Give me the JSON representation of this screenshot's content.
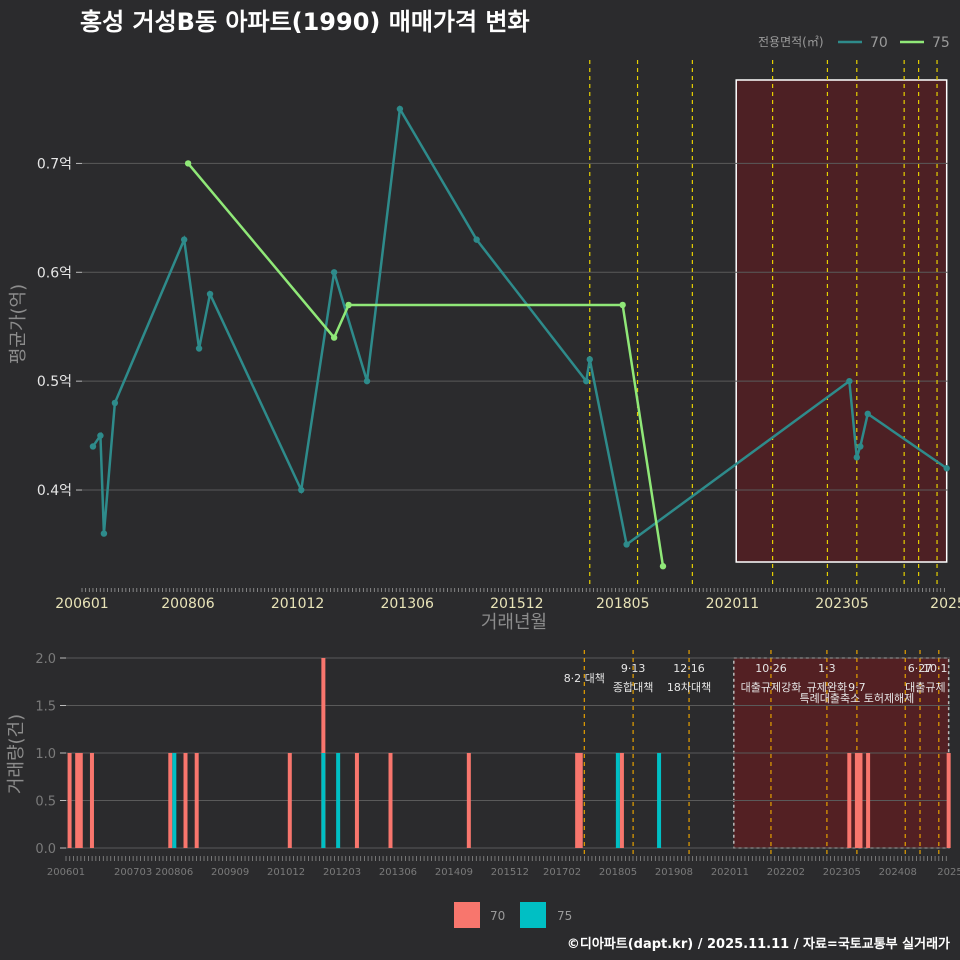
{
  "title": "홍성 거성B동 아파트(1990) 매매가격 변화",
  "footer": "©디아파트(dapt.kr) / 2025.11.11 / 자료=국토교통부 실거래가",
  "legend_top": {
    "title": "전용면적(㎡)",
    "items": [
      "70",
      "75"
    ]
  },
  "legend_bottom": {
    "items": [
      "70",
      "75"
    ]
  },
  "colors": {
    "s70": "#2e8b8b",
    "s75": "#90e878",
    "bar70": "#f8766d",
    "bar75": "#00bfc4",
    "grid": "#5a5a5a",
    "vline": "#e6d000",
    "vline_bottom": "#e6a000",
    "shade": "#5a1e22",
    "bg": "#2b2b2d"
  },
  "chart_data": [
    {
      "type": "line",
      "title": "홍성 거성B동 아파트(1990) 매매가격 변화",
      "xlabel": "거래년월",
      "ylabel": "평균가(억)",
      "xlim": [
        2006.0,
        2025.75
      ],
      "ylim": [
        0.31,
        0.795
      ],
      "yticks": [
        {
          "value": 0.4,
          "label": "0.4억"
        },
        {
          "value": 0.5,
          "label": "0.5억"
        },
        {
          "value": 0.6,
          "label": "0.6억"
        },
        {
          "value": 0.7,
          "label": "0.7억"
        }
      ],
      "xticks": [
        {
          "value": 2006.0,
          "label": "200601"
        },
        {
          "value": 2008.417,
          "label": "200806"
        },
        {
          "value": 2010.917,
          "label": "201012"
        },
        {
          "value": 2013.417,
          "label": "201306"
        },
        {
          "value": 2015.917,
          "label": "201512"
        },
        {
          "value": 2018.333,
          "label": "201805"
        },
        {
          "value": 2020.833,
          "label": "202011"
        },
        {
          "value": 2023.333,
          "label": "202305"
        },
        {
          "value": 2025.75,
          "label": "2025"
        }
      ],
      "vlines": [
        2017.58,
        2018.67,
        2019.92,
        2021.75,
        2023.0,
        2023.67,
        2024.75,
        2025.08,
        2025.5
      ],
      "shade": [
        2020.92,
        2025.72
      ],
      "series": [
        {
          "name": "70",
          "x": [
            2006.25,
            2006.42,
            2006.5,
            2006.75,
            2008.33,
            2008.67,
            2008.92,
            2011.0,
            2011.75,
            2012.5,
            2013.25,
            2015.0,
            2017.5,
            2017.58,
            2018.42,
            2023.5,
            2023.67,
            2023.75,
            2023.92,
            2025.72
          ],
          "values": [
            0.44,
            0.45,
            0.36,
            0.48,
            0.63,
            0.53,
            0.58,
            0.4,
            0.6,
            0.5,
            0.75,
            0.63,
            0.5,
            0.52,
            0.35,
            0.5,
            0.43,
            0.44,
            0.47,
            0.42
          ]
        },
        {
          "name": "75",
          "x": [
            2008.42,
            2011.75,
            2012.08,
            2018.33,
            2019.25
          ],
          "values": [
            0.7,
            0.54,
            0.57,
            0.57,
            0.33
          ]
        }
      ]
    },
    {
      "type": "bar",
      "xlabel": "",
      "ylabel": "거래량(건)",
      "xlim": [
        2006.0,
        2025.75
      ],
      "ylim": [
        0,
        2.0
      ],
      "yticks": [
        {
          "value": 0.0,
          "label": "0.0"
        },
        {
          "value": 0.5,
          "label": "0.5"
        },
        {
          "value": 1.0,
          "label": "1.0"
        },
        {
          "value": 1.5,
          "label": "1.5"
        },
        {
          "value": 2.0,
          "label": "2.0"
        }
      ],
      "xticks": [
        {
          "value": 2006.0,
          "label": "200601"
        },
        {
          "value": 2007.5,
          "label": "200703"
        },
        {
          "value": 2008.417,
          "label": "200806"
        },
        {
          "value": 2009.667,
          "label": "200909"
        },
        {
          "value": 2010.917,
          "label": "201012"
        },
        {
          "value": 2012.167,
          "label": "201203"
        },
        {
          "value": 2013.417,
          "label": "201306"
        },
        {
          "value": 2014.667,
          "label": "201409"
        },
        {
          "value": 2015.917,
          "label": "201512"
        },
        {
          "value": 2017.083,
          "label": "201702"
        },
        {
          "value": 2018.333,
          "label": "201805"
        },
        {
          "value": 2019.583,
          "label": "201908"
        },
        {
          "value": 2020.833,
          "label": "202011"
        },
        {
          "value": 2022.083,
          "label": "202202"
        },
        {
          "value": 2023.333,
          "label": "202305"
        },
        {
          "value": 2024.583,
          "label": "202408"
        },
        {
          "value": 2025.75,
          "label": "2025"
        }
      ],
      "vlines": [
        2017.58,
        2018.67,
        2019.92,
        2021.75,
        2023.0,
        2023.67,
        2024.75,
        2025.08,
        2025.5
      ],
      "shade": [
        2020.92,
        2025.72
      ],
      "annotations": [
        {
          "x": 2017.58,
          "row": 1,
          "text": "8·2 대책"
        },
        {
          "x": 2018.67,
          "row": 0,
          "text": "9·13"
        },
        {
          "x": 2018.67,
          "row": 1.9,
          "text": "종합대책"
        },
        {
          "x": 2019.92,
          "row": 0,
          "text": "12·16"
        },
        {
          "x": 2019.92,
          "row": 1.9,
          "text": "18차대책"
        },
        {
          "x": 2021.75,
          "row": 0,
          "text": "10·26"
        },
        {
          "x": 2021.75,
          "row": 1.9,
          "text": "대출규제강화"
        },
        {
          "x": 2023.0,
          "row": 0,
          "text": "1·3"
        },
        {
          "x": 2023.0,
          "row": 1.9,
          "text": "규제완화"
        },
        {
          "x": 2023.67,
          "row": 1.9,
          "text": "9·7"
        },
        {
          "x": 2023.67,
          "row": 3,
          "text": "특례대출축소 토허제해제"
        },
        {
          "x": 2025.08,
          "row": 0,
          "text": "6·27"
        },
        {
          "x": 2025.42,
          "row": 0,
          "text": "10·1"
        },
        {
          "x": 2025.2,
          "row": 1.9,
          "text": "대출규제"
        }
      ],
      "series": [
        {
          "name": "70",
          "x": [
            2006.08,
            2006.25,
            2006.33,
            2006.58,
            2008.33,
            2008.67,
            2008.92,
            2011.0,
            2011.75,
            2012.5,
            2013.25,
            2015.0,
            2017.42,
            2017.5,
            2018.42,
            2023.5,
            2023.67,
            2023.75,
            2023.92,
            2025.72
          ],
          "values": [
            1,
            1,
            1,
            1,
            1,
            1,
            1,
            1,
            2,
            1,
            1,
            1,
            1,
            1,
            1,
            1,
            1,
            1,
            1,
            1
          ]
        },
        {
          "name": "75",
          "x": [
            2008.42,
            2011.75,
            2012.08,
            2018.33,
            2019.25
          ],
          "values": [
            1,
            1,
            1,
            1,
            1
          ]
        }
      ]
    }
  ]
}
